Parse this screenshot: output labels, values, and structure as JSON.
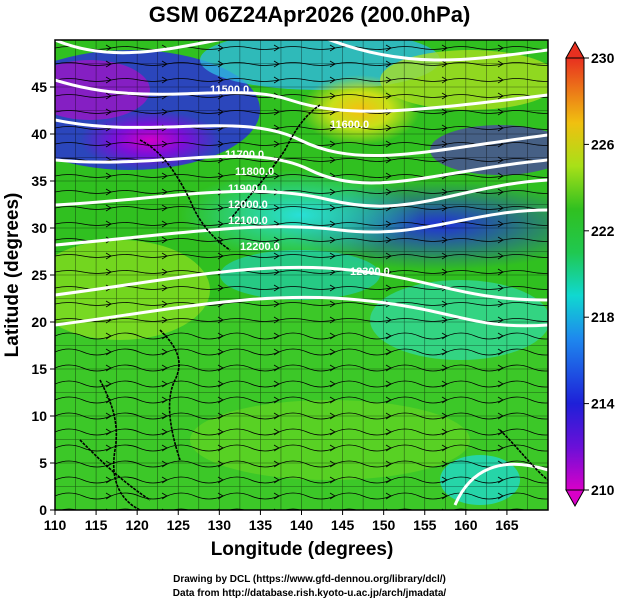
{
  "title": "GSM 06Z24Apr2026 (200.0hPa)",
  "x_axis": {
    "label": "Longitude (degrees)",
    "range": [
      110,
      170
    ],
    "ticks": [
      "110",
      "115",
      "120",
      "125",
      "130",
      "135",
      "140",
      "145",
      "150",
      "155",
      "160",
      "165"
    ]
  },
  "y_axis": {
    "label": "Latitude  (degrees)",
    "range": [
      0,
      50
    ],
    "ticks": [
      "0",
      "5",
      "10",
      "15",
      "20",
      "25",
      "30",
      "35",
      "40",
      "45"
    ]
  },
  "colorbar": {
    "min": 210,
    "max": 230,
    "labels": [
      "210",
      "214",
      "218",
      "222",
      "226",
      "230"
    ],
    "colors": [
      "#d600c8",
      "#6a00d6",
      "#1f1fd6",
      "#1f8fe8",
      "#10d8d0",
      "#18d080",
      "#20c020",
      "#8ce020",
      "#e8e010",
      "#f0a010",
      "#e84020"
    ]
  },
  "contour_labels": [
    "11500.0",
    "11600.0",
    "11700.0",
    "11800.0",
    "11900.0",
    "12000.0",
    "12100.0",
    "12200.0",
    "12300.0"
  ],
  "credits": {
    "line1": "Drawing by DCL (https://www.gfd-dennou.org/library/dcl/)",
    "line2": "Data from http://database.rish.kyoto-u.ac.jp/arch/jmadata/"
  }
}
